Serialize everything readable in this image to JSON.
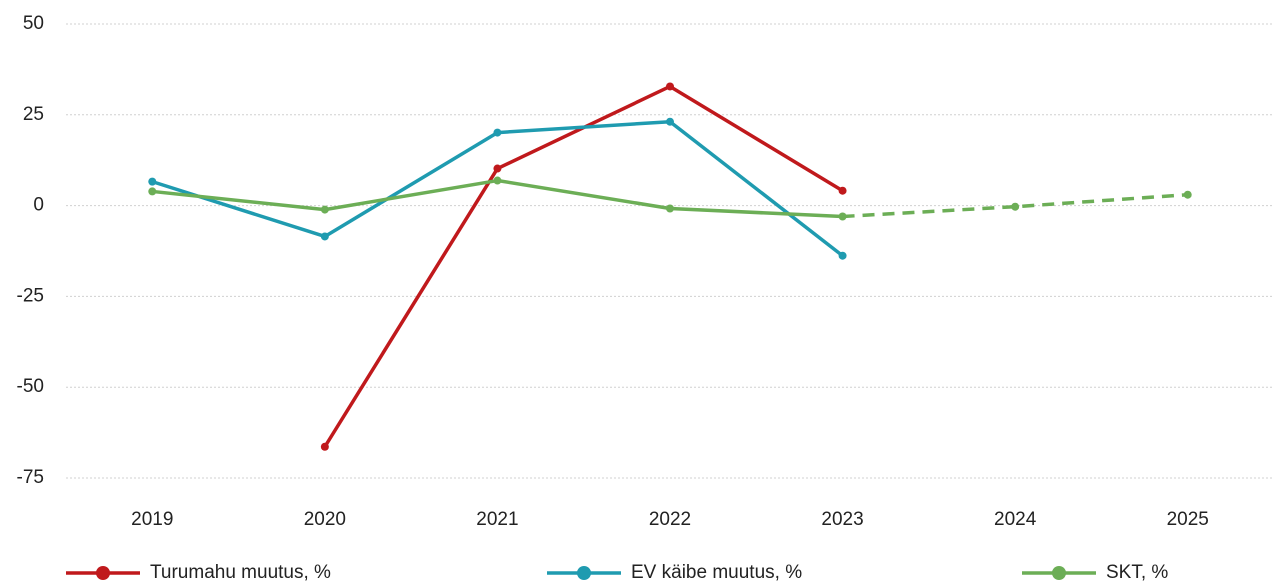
{
  "chart_data": {
    "type": "line",
    "categories": [
      "2019",
      "2020",
      "2021",
      "2022",
      "2023",
      "2024",
      "2025"
    ],
    "series": [
      {
        "name": "Turumahu muutus, %",
        "color": "#c0191c",
        "values": [
          null,
          -66.4,
          10.2,
          32.8,
          4.1,
          null,
          null
        ]
      },
      {
        "name": "EV käibe muutus, %",
        "color": "#1f9bb0",
        "values": [
          6.6,
          -8.5,
          20.1,
          23.1,
          -13.8,
          null,
          null
        ]
      },
      {
        "name": "SKT, %",
        "color": "#6cae56",
        "values": [
          3.9,
          -1.1,
          6.9,
          -0.8,
          -3.0,
          -0.3,
          3.0
        ],
        "dashed_from": "2023"
      }
    ],
    "ylim": [
      -75,
      50
    ],
    "yticks": [
      -75,
      -50,
      -25,
      0,
      25,
      50
    ],
    "grid": true,
    "legend": "bottom"
  }
}
